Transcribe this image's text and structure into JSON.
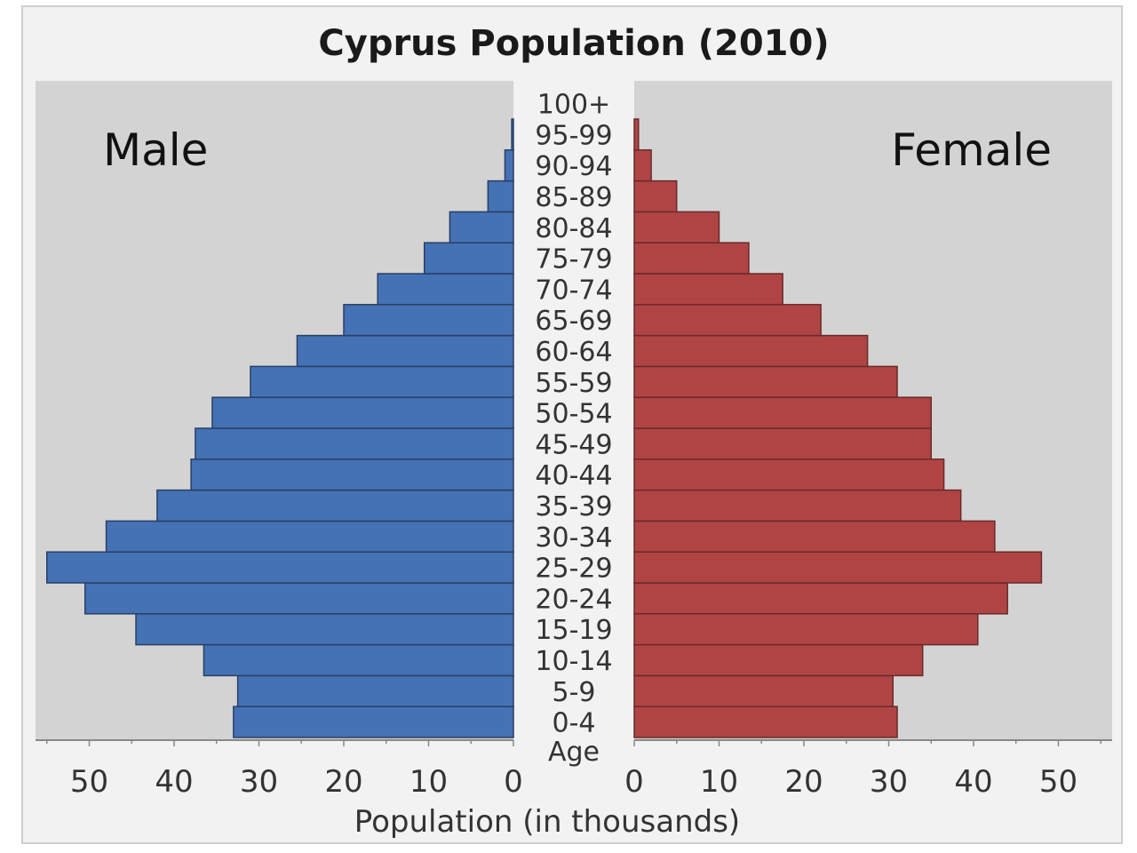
{
  "chart_data": {
    "type": "bar",
    "subtype": "population-pyramid",
    "title": "Cyprus Population (2010)",
    "xlabel": "Population (in thousands)",
    "age_axis_label": "Age",
    "left_label": "Male",
    "right_label": "Female",
    "categories": [
      "0-4",
      "5-9",
      "10-14",
      "15-19",
      "20-24",
      "25-29",
      "30-34",
      "35-39",
      "40-44",
      "45-49",
      "50-54",
      "55-59",
      "60-64",
      "65-69",
      "70-74",
      "75-79",
      "80-84",
      "85-89",
      "90-94",
      "95-99",
      "100+"
    ],
    "series": [
      {
        "name": "Male",
        "color": "#4472b4",
        "values": [
          33,
          32.5,
          36.5,
          44.5,
          50.5,
          55,
          48,
          42,
          38,
          37.5,
          35.5,
          31,
          25.5,
          20,
          16,
          10.5,
          7.5,
          3,
          1,
          0.2,
          0
        ]
      },
      {
        "name": "Female",
        "color": "#b04444",
        "values": [
          31,
          30.5,
          34,
          40.5,
          44,
          48,
          42.5,
          38.5,
          36.5,
          35,
          35,
          31,
          27.5,
          22,
          17.5,
          13.5,
          10,
          5,
          2,
          0.5,
          0
        ]
      }
    ],
    "xlim_left": [
      55,
      0
    ],
    "xlim_right": [
      0,
      55
    ],
    "ticks_left": [
      "50",
      "40",
      "30",
      "20",
      "10",
      "0"
    ],
    "ticks_right": [
      "0",
      "10",
      "20",
      "30",
      "40",
      "50"
    ],
    "grid": false,
    "plot_background": "#d3d3d3"
  }
}
